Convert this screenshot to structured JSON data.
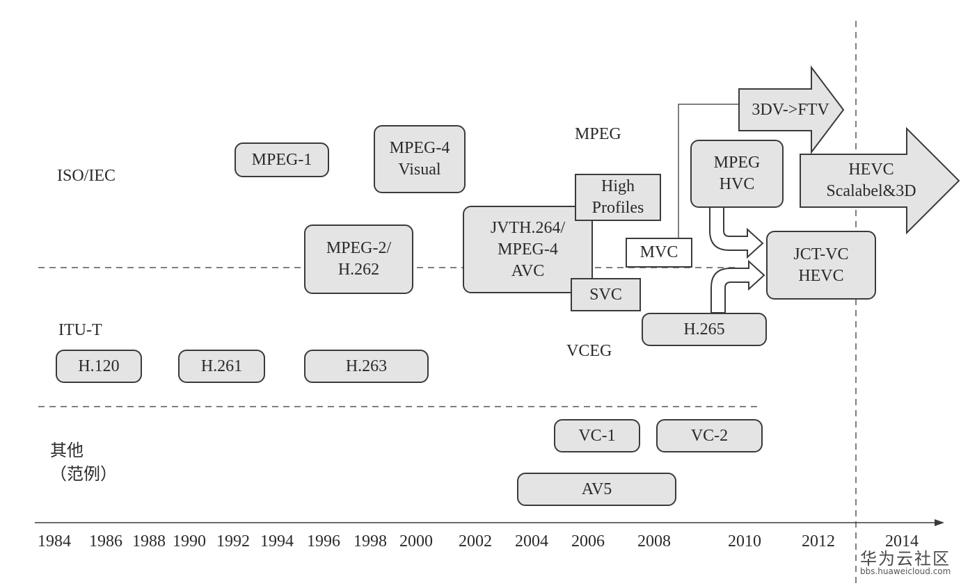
{
  "rows": {
    "iso": "ISO/IEC",
    "itu": "ITU-T",
    "other": "其他\n（范例）"
  },
  "groups": {
    "mpeg": "MPEG",
    "vceg": "VCEG"
  },
  "boxes": {
    "mpeg1": "MPEG-1",
    "mpeg4_visual": "MPEG-4\nVisual",
    "mpeg2": "MPEG-2/\nH.262",
    "avc": "JVTH.264/\nMPEG-4\nAVC",
    "high_profiles": "High\nProfiles",
    "svc": "SVC",
    "mvc": "MVC",
    "mpeg_hvc": "MPEG\nHVC",
    "jct_vc": "JCT-VC\nHEVC",
    "h265": "H.265",
    "h120": "H.120",
    "h261": "H.261",
    "h263": "H.263",
    "vc1": "VC-1",
    "vc2": "VC-2",
    "av5": "AV5"
  },
  "arrows": {
    "ftv": "3DV->FTV",
    "hevc_ext": "HEVC\nScalabel&3D"
  },
  "timeline": {
    "years": [
      "1984",
      "1986",
      "1988",
      "1990",
      "1992",
      "1994",
      "1996",
      "1998",
      "2000",
      "2002",
      "2004",
      "2006",
      "2008",
      "2010",
      "2012",
      "2014"
    ]
  },
  "watermark": {
    "title": "华为云社区",
    "url": "bbs.huaweicloud.com"
  },
  "colors": {
    "box_fill": "#e4e4e4",
    "stroke": "#3a3a3a"
  }
}
